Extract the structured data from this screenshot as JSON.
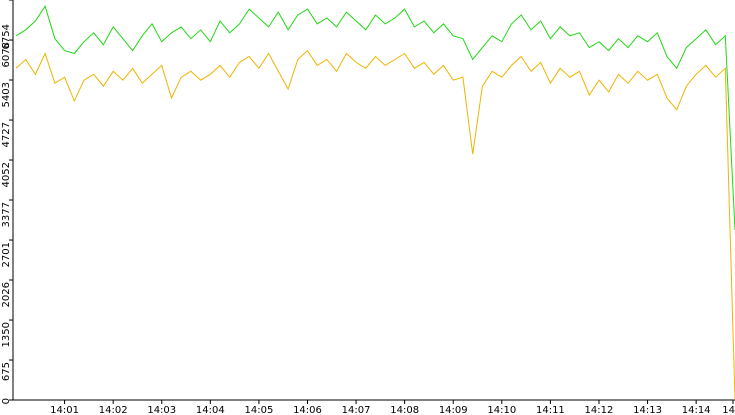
{
  "chart_data": {
    "type": "line",
    "x": [
      0,
      12,
      24,
      36,
      48,
      60,
      72,
      84,
      96,
      108,
      120,
      132,
      144,
      156,
      168,
      180,
      192,
      204,
      216,
      228,
      240,
      252,
      264,
      276,
      288,
      300,
      312,
      324,
      336,
      348,
      360,
      372,
      384,
      396,
      408,
      420,
      432,
      444,
      456,
      468,
      480,
      492,
      504,
      516,
      528,
      540,
      552,
      564,
      576,
      588,
      600,
      612,
      624,
      636,
      648,
      660,
      672,
      684,
      696,
      708,
      720,
      732,
      744,
      756,
      768,
      780,
      792,
      804,
      816,
      828,
      840,
      852,
      864,
      876,
      888
    ],
    "xlim": [
      0,
      888
    ],
    "xticks": [
      {
        "value": 60,
        "label": "14:01"
      },
      {
        "value": 120,
        "label": "14:02"
      },
      {
        "value": 180,
        "label": "14:03"
      },
      {
        "value": 240,
        "label": "14:04"
      },
      {
        "value": 300,
        "label": "14:05"
      },
      {
        "value": 360,
        "label": "14:06"
      },
      {
        "value": 420,
        "label": "14:07"
      },
      {
        "value": 480,
        "label": "14:08"
      },
      {
        "value": 540,
        "label": "14:09"
      },
      {
        "value": 600,
        "label": "14:10"
      },
      {
        "value": 660,
        "label": "14:11"
      },
      {
        "value": 720,
        "label": "14:12"
      },
      {
        "value": 780,
        "label": "14:13"
      },
      {
        "value": 840,
        "label": "14:14"
      },
      {
        "value": 900,
        "label": "14"
      }
    ],
    "ylim": [
      0,
      6754
    ],
    "yticks": [
      0,
      675,
      1350,
      2026,
      2701,
      3377,
      4052,
      4727,
      5403,
      6078,
      6754
    ],
    "series": [
      {
        "color": "#22d814",
        "values": [
          6150,
          6250,
          6400,
          6650,
          6100,
          5900,
          5850,
          6050,
          6200,
          6000,
          6300,
          6100,
          5900,
          6150,
          6350,
          6050,
          6200,
          6300,
          6100,
          6250,
          6050,
          6400,
          6200,
          6350,
          6600,
          6450,
          6300,
          6550,
          6250,
          6500,
          6600,
          6350,
          6450,
          6300,
          6550,
          6400,
          6250,
          6500,
          6350,
          6450,
          6600,
          6300,
          6400,
          6200,
          6350,
          6150,
          6100,
          5750,
          5950,
          6150,
          6050,
          6350,
          6500,
          6250,
          6400,
          6100,
          6300,
          6150,
          6200,
          5950,
          6050,
          5900,
          6100,
          5950,
          6150,
          6050,
          6200,
          5800,
          5600,
          5950,
          6100,
          6250,
          6000,
          6150,
          2870
        ]
      },
      {
        "color": "#f0b400",
        "values": [
          5600,
          5750,
          5500,
          5850,
          5350,
          5450,
          5050,
          5400,
          5500,
          5300,
          5550,
          5400,
          5600,
          5350,
          5500,
          5650,
          5100,
          5450,
          5550,
          5400,
          5500,
          5650,
          5450,
          5700,
          5800,
          5600,
          5850,
          5550,
          5250,
          5750,
          5900,
          5650,
          5750,
          5550,
          5850,
          5700,
          5600,
          5800,
          5650,
          5750,
          5850,
          5600,
          5700,
          5500,
          5650,
          5400,
          5450,
          4150,
          5300,
          5550,
          5450,
          5650,
          5800,
          5550,
          5700,
          5350,
          5600,
          5450,
          5550,
          5150,
          5400,
          5200,
          5500,
          5350,
          5550,
          5400,
          5500,
          5100,
          4900,
          5300,
          5500,
          5650,
          5450,
          5600,
          0
        ]
      }
    ]
  }
}
